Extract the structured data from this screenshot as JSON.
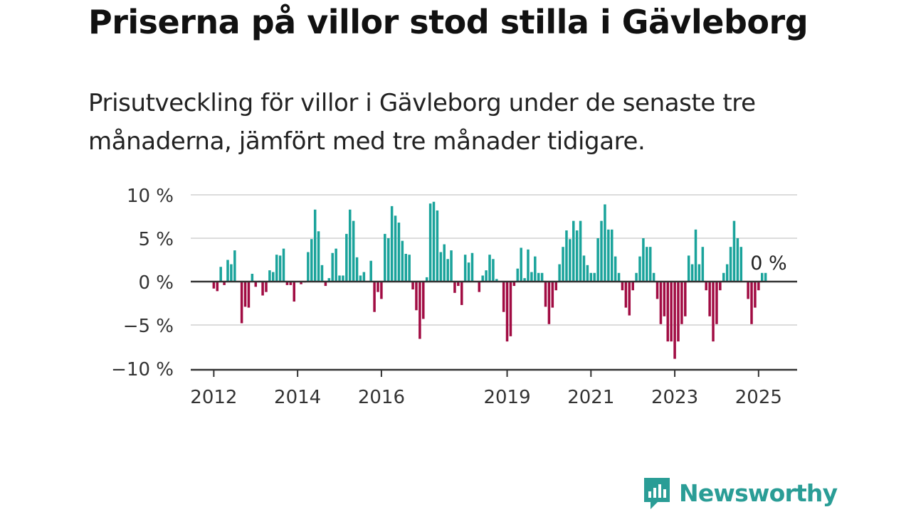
{
  "title": "Priserna på villor stod stilla i Gävleborg",
  "subtitle": "Prisutveckling för villor i Gävleborg under de senaste tre månaderna, jämfört med tre månader tidigare.",
  "brand": {
    "name": "Newsworthy",
    "color": "#2a9d96",
    "icon": "newsworthy-bar-chart-logo-icon"
  },
  "colors": {
    "positive": "#1aa39b",
    "negative": "#a10c43",
    "grid": "#dcdcdc",
    "axis": "#333333"
  },
  "chart_data": {
    "type": "bar",
    "ylim": [
      -10,
      10
    ],
    "yticks": [
      10,
      5,
      0,
      -5,
      -10
    ],
    "ytick_labels": [
      "10 %",
      "5 %",
      "0 %",
      "−5 %",
      "−10 %"
    ],
    "xlim": [
      2011.45,
      2025.92
    ],
    "xticks": [
      2012,
      2014,
      2016,
      2019,
      2021,
      2023,
      2025
    ],
    "xtick_labels": [
      "2012",
      "2014",
      "2016",
      "2019",
      "2021",
      "2023",
      "2025"
    ],
    "grid": true,
    "annotation": {
      "text": "0 %"
    },
    "series": [
      {
        "start": "2012-01",
        "frequency": "monthly",
        "values": [
          -0.8,
          -1.1,
          1.7,
          -0.4,
          2.5,
          2.0,
          3.6,
          0.0,
          -4.8,
          -2.9,
          -3.0,
          0.9,
          -0.6,
          0.1,
          -1.6,
          -1.2,
          1.3,
          1.1,
          3.1,
          3.0,
          3.8,
          -0.4,
          -0.4,
          -2.3,
          0.0,
          -0.3,
          -0.1,
          3.4,
          4.9,
          8.3,
          5.8,
          1.9,
          -0.5,
          0.4,
          3.3,
          3.8,
          0.7,
          0.7,
          5.5,
          8.3,
          7.0,
          2.8,
          0.7,
          1.1,
          0.0,
          2.4,
          -3.5,
          -1.2,
          -2.0,
          5.5,
          5.0,
          8.7,
          7.6,
          6.8,
          4.7,
          3.2,
          3.1,
          -0.9,
          -3.3,
          -6.6,
          -4.3,
          0.5,
          9.0,
          9.2,
          8.2,
          3.4,
          4.3,
          2.6,
          3.6,
          -1.3,
          -0.5,
          -2.7,
          3.1,
          2.2,
          3.3,
          0.0,
          -1.2,
          0.7,
          1.3,
          3.1,
          2.6,
          0.3,
          0.0,
          -3.5,
          -6.9,
          -6.3,
          -0.5,
          1.5,
          3.9,
          0.4,
          3.7,
          1.1,
          2.9,
          1.0,
          1.0,
          -2.9,
          -4.9,
          -3.0,
          -1.0,
          2.0,
          4.0,
          5.9,
          4.9,
          7.0,
          5.9,
          7.0,
          3.0,
          1.9,
          1.0,
          1.0,
          5.0,
          7.0,
          8.9,
          6.0,
          6.0,
          2.9,
          1.0,
          -1.0,
          -3.0,
          -3.9,
          -1.0,
          1.0,
          2.9,
          5.0,
          4.0,
          4.0,
          1.0,
          -2.0,
          -4.9,
          -4.0,
          -6.9,
          -6.9,
          -8.9,
          -6.9,
          -4.9,
          -4.0,
          3.0,
          2.0,
          6.0,
          2.0,
          4.0,
          -1.0,
          -4.0,
          -6.9,
          -4.9,
          -1.0,
          1.0,
          2.0,
          4.0,
          7.0,
          5.0,
          4.0,
          0.0,
          -2.0,
          -4.9,
          -3.0,
          -1.0,
          1.0,
          1.0
        ]
      }
    ]
  }
}
